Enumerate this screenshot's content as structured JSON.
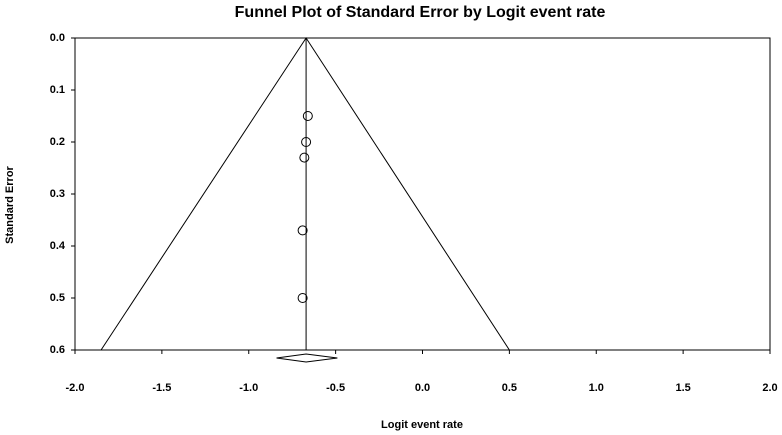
{
  "chart_data": {
    "type": "scatter",
    "title": "Funnel Plot of Standard Error by Logit event rate",
    "x_label": "Logit event rate",
    "y_label": "Standard Error",
    "x": [
      -0.66,
      -0.67,
      -0.68,
      -0.69,
      -0.69
    ],
    "values": [
      0.15,
      0.2,
      0.23,
      0.37,
      0.5
    ],
    "color": "#000000",
    "xlim": [
      -2.0,
      2.0
    ],
    "ylim": [
      0.0,
      0.6
    ],
    "y_inverted": true,
    "xticks": [
      {
        "value": -2.0,
        "label": "-2.0"
      },
      -1.5,
      {
        "value": -1.0,
        "label": "-1.0"
      },
      -0.5,
      {
        "value": 0.0,
        "label": "0.0"
      },
      0.5,
      {
        "value": 1.0,
        "label": "1.0"
      },
      1.5,
      {
        "value": 2.0,
        "label": "2.0"
      }
    ],
    "yticks": [
      {
        "value": 0.0,
        "label": "0.0"
      },
      0.1,
      0.2,
      0.3,
      0.4,
      0.5,
      0.6
    ],
    "grid": false,
    "pooled": -0.67,
    "funnel": {
      "x": [
        -1.85,
        -0.67,
        0.5
      ],
      "y": [
        0.6,
        0.0,
        0.6
      ]
    },
    "summary": {
      "estimate": -0.67,
      "lower": -0.84,
      "upper": -0.49
    }
  }
}
